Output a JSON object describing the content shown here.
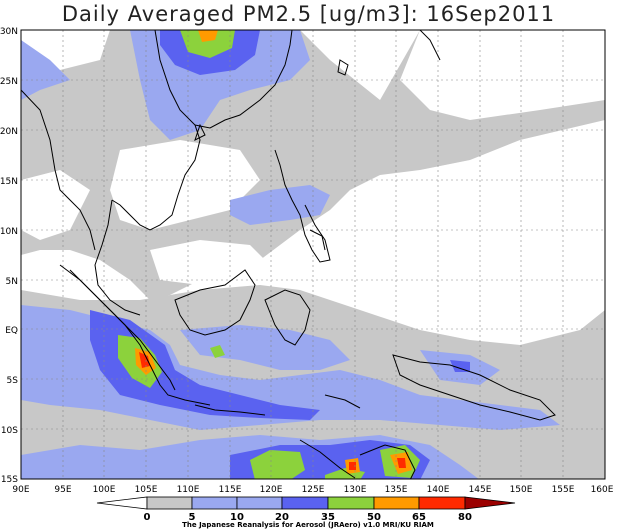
{
  "title": "Daily Averaged PM2.5 [ug/m3]: 16Sep2011",
  "credit": "The Japanese Reanalysis for Aerosol (JRAero) v1.0 MRI/KU RIAM",
  "lon_labels": [
    "90E",
    "95E",
    "100E",
    "105E",
    "110E",
    "115E",
    "120E",
    "125E",
    "130E",
    "135E",
    "140E",
    "145E",
    "150E",
    "155E",
    "160E"
  ],
  "lat_labels": [
    "30N",
    "25N",
    "20N",
    "15N",
    "10N",
    "5N",
    "EQ",
    "5S",
    "10S",
    "15S"
  ],
  "colorbar": {
    "ticks": [
      "0",
      "5",
      "10",
      "20",
      "35",
      "50",
      "65",
      "80"
    ],
    "colors": [
      "#ffffff",
      "#c8c8c8",
      "#9aa8f0",
      "#5a62f0",
      "#8cd23c",
      "#ff9a00",
      "#ff2a00",
      "#9b0000"
    ]
  },
  "palette": {
    "grey": "#c8c8c8",
    "light_blue": "#9aa8f0",
    "blue": "#5a62f0",
    "green": "#8cd23c",
    "orange": "#ff9a00",
    "red": "#ff2a00",
    "dark_red": "#9b0000"
  }
}
